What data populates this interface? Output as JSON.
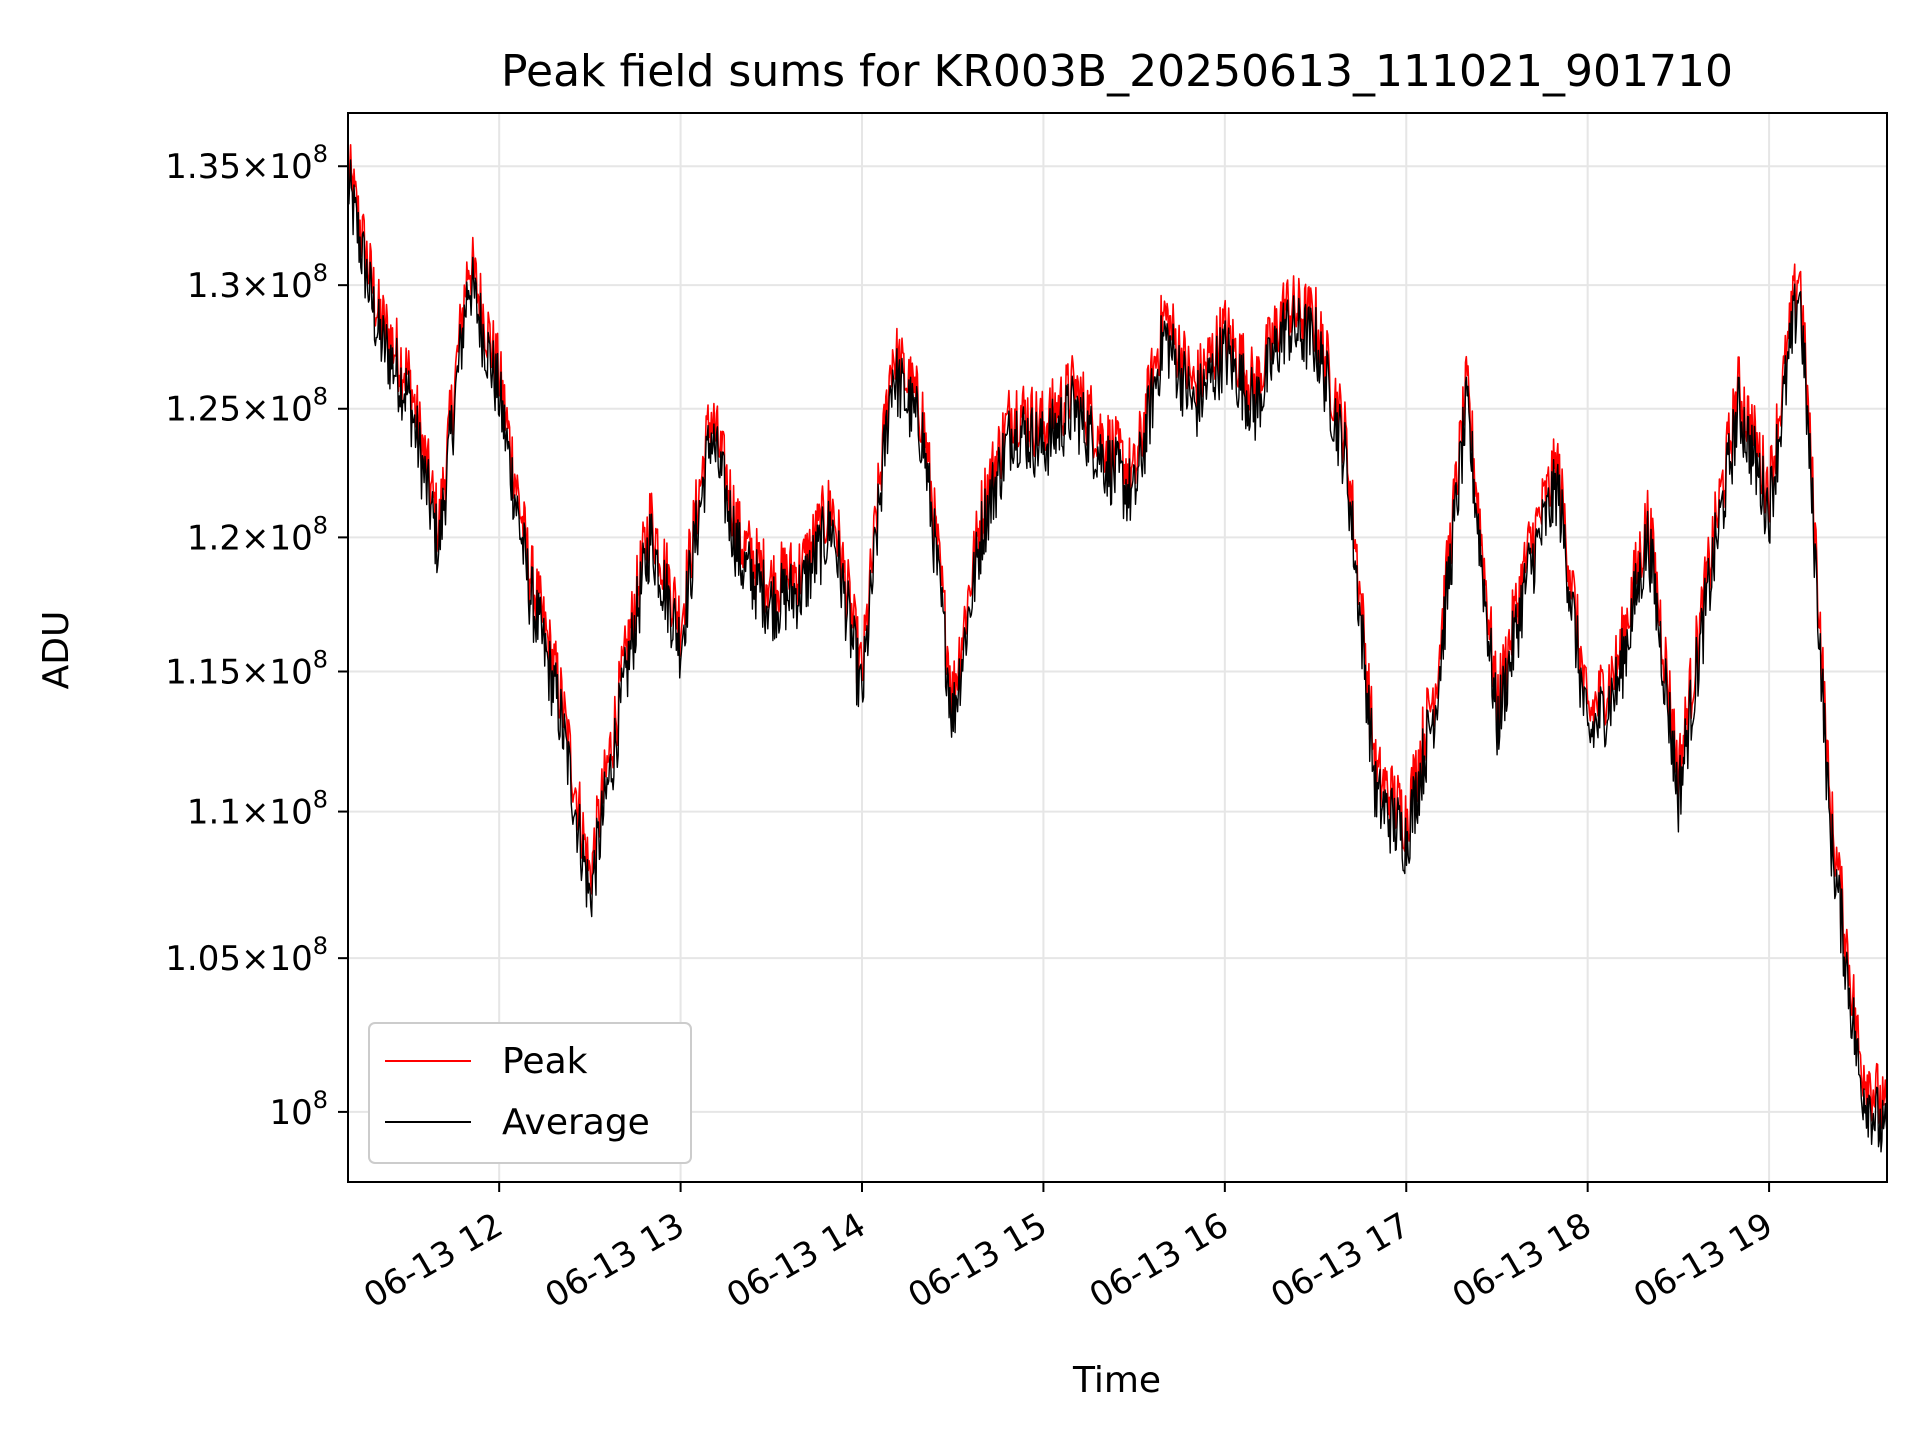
{
  "chart_data": {
    "type": "line",
    "title": "Peak field sums for KR003B_20250613_111021_901710",
    "xlabel": "Time",
    "ylabel": "ADU",
    "y_scale": "log",
    "grid": true,
    "legend_placement": "lower-left",
    "xlim": [
      "2025-06-13 11:10",
      "2025-06-13 19:39"
    ],
    "ylim": [
      97800000,
      137300000
    ],
    "x_ticks": [
      "06-13 12",
      "06-13 13",
      "06-13 14",
      "06-13 15",
      "06-13 16",
      "06-13 17",
      "06-13 18",
      "06-13 19"
    ],
    "y_ticks": [
      {
        "value": 100000000,
        "mantissa": "",
        "exponent": "8"
      },
      {
        "value": 105000000,
        "mantissa": "1.05",
        "exponent": "8"
      },
      {
        "value": 110000000,
        "mantissa": "1.1",
        "exponent": "8"
      },
      {
        "value": 115000000,
        "mantissa": "1.15",
        "exponent": "8"
      },
      {
        "value": 120000000,
        "mantissa": "1.2",
        "exponent": "8"
      },
      {
        "value": 125000000,
        "mantissa": "1.25",
        "exponent": "8"
      },
      {
        "value": 130000000,
        "mantissa": "1.3",
        "exponent": "8"
      },
      {
        "value": 135000000,
        "mantissa": "1.35",
        "exponent": "8"
      }
    ],
    "x": [
      "11:10",
      "11:20",
      "11:30",
      "11:40",
      "11:50",
      "12:00",
      "12:10",
      "12:20",
      "12:30",
      "12:40",
      "12:50",
      "13:00",
      "13:10",
      "13:20",
      "13:30",
      "13:40",
      "13:50",
      "14:00",
      "14:10",
      "14:20",
      "14:30",
      "14:40",
      "14:50",
      "15:00",
      "15:10",
      "15:20",
      "15:30",
      "15:40",
      "15:50",
      "16:00",
      "16:10",
      "16:20",
      "16:30",
      "16:40",
      "16:50",
      "17:00",
      "17:10",
      "17:20",
      "17:30",
      "17:40",
      "17:50",
      "18:00",
      "18:10",
      "18:20",
      "18:30",
      "18:40",
      "18:50",
      "19:00",
      "19:10",
      "19:20",
      "19:30",
      "19:39"
    ],
    "series": [
      {
        "name": "Peak",
        "color": "#ff0000",
        "values": [
          134500000,
          128500000,
          126000000,
          120000000,
          130800000,
          126000000,
          118500000,
          114000000,
          107500000,
          114000000,
          120500000,
          116500000,
          124500000,
          119500000,
          118000000,
          118500000,
          121000000,
          114500000,
          127000000,
          124500000,
          113800000,
          121000000,
          124800000,
          124000000,
          125500000,
          123500000,
          122000000,
          128500000,
          125500000,
          127800000,
          125500000,
          128800000,
          128200000,
          123500000,
          111000000,
          109500000,
          114500000,
          125500000,
          113500000,
          119000000,
          122500000,
          113000000,
          115000000,
          120500000,
          111000000,
          118500000,
          125500000,
          121500000,
          130500000,
          110000000,
          101500000,
          99500000
        ]
      },
      {
        "name": "Average",
        "color": "#000000",
        "values": [
          134200000,
          128000000,
          125500000,
          119500000,
          130300000,
          125500000,
          118000000,
          113500000,
          107000000,
          113500000,
          120000000,
          116000000,
          124000000,
          119000000,
          117500000,
          118000000,
          120500000,
          114000000,
          126500000,
          124000000,
          113300000,
          120500000,
          124300000,
          123500000,
          125000000,
          123000000,
          121500000,
          128000000,
          125000000,
          127300000,
          125000000,
          128300000,
          127700000,
          123000000,
          110500000,
          109000000,
          114000000,
          125000000,
          113000000,
          118500000,
          122000000,
          112500000,
          114500000,
          120000000,
          110500000,
          118000000,
          125000000,
          121000000,
          130000000,
          109500000,
          101000000,
          99000000
        ]
      }
    ]
  }
}
